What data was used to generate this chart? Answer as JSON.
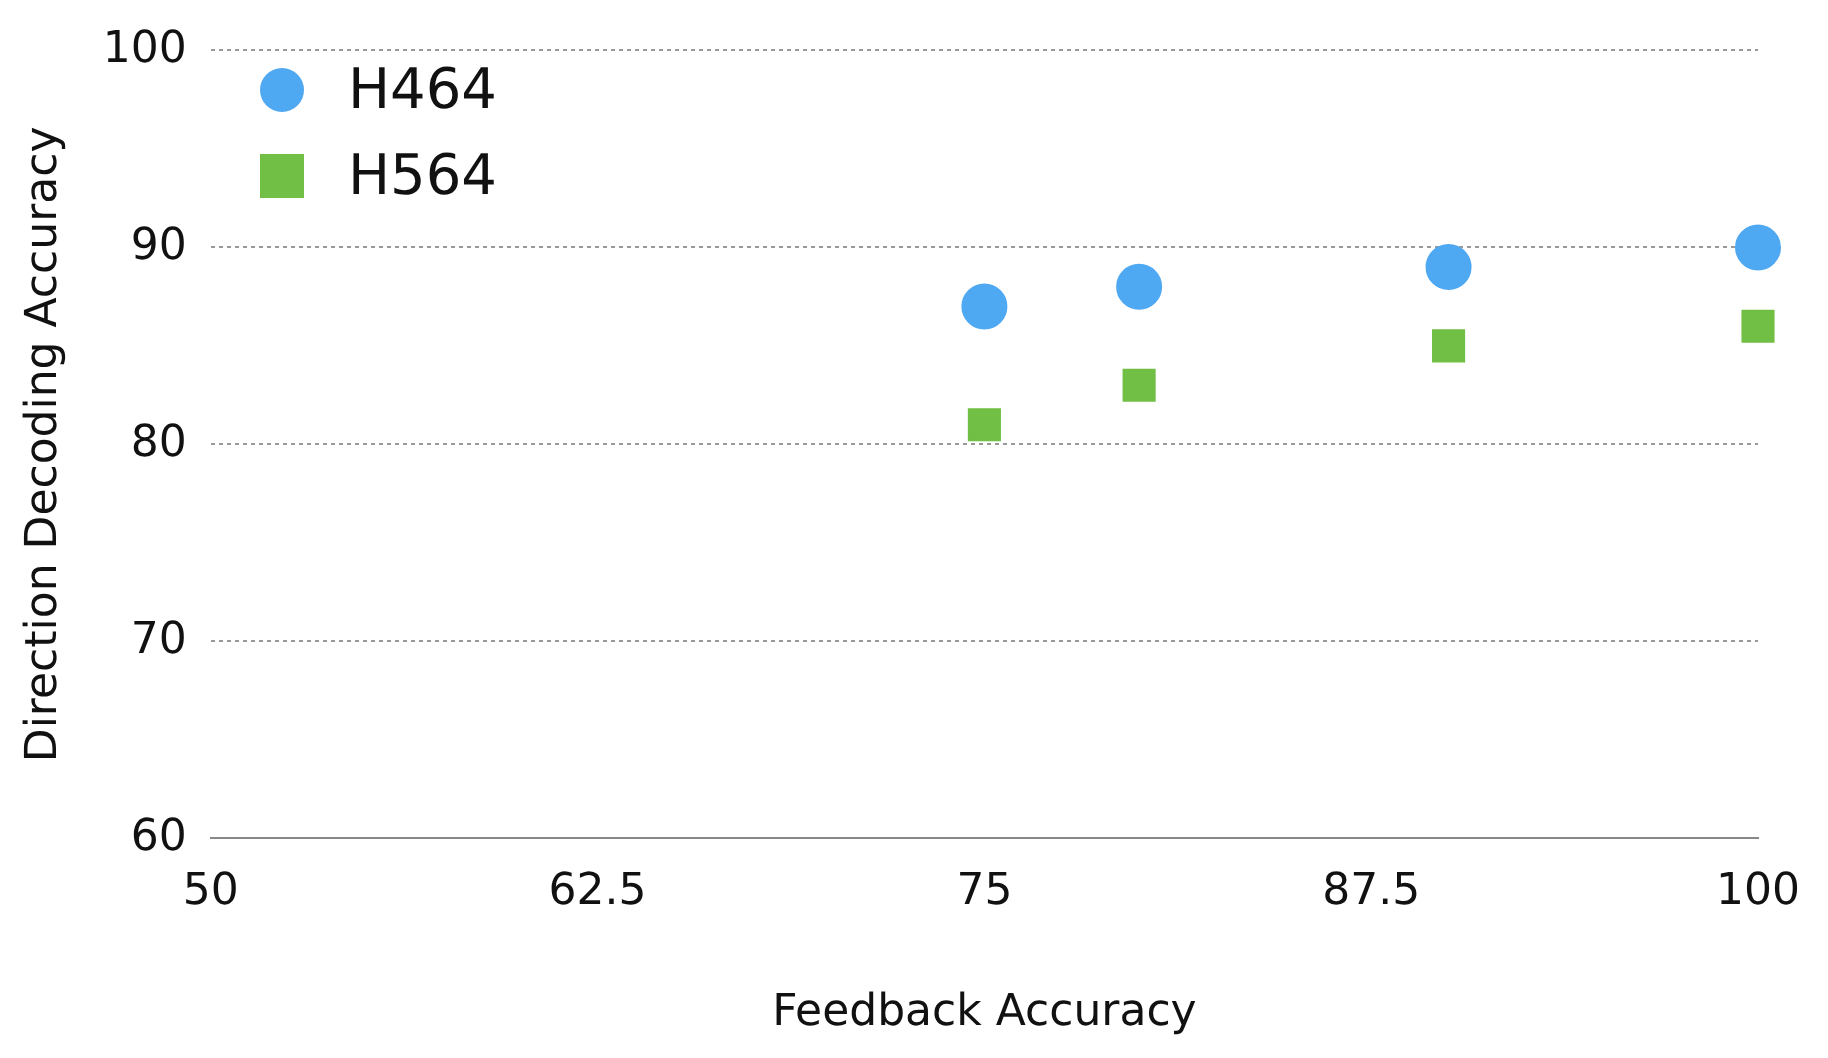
{
  "chart_data": {
    "type": "scatter",
    "xlabel": "Feedback Accuracy",
    "ylabel": "Direction Decoding Accuracy",
    "xlim": [
      50,
      100
    ],
    "xticks": [
      50,
      62.5,
      75,
      87.5,
      100
    ],
    "ylim": [
      60,
      100
    ],
    "yticks": [
      60,
      70,
      80,
      90,
      100
    ],
    "grid": "y",
    "legend": "top left",
    "series": [
      {
        "name": "H464",
        "color": "#4fa8f2",
        "marker": "circle",
        "x": [
          75,
          80,
          90,
          100
        ],
        "values": [
          87,
          88,
          89,
          90
        ]
      },
      {
        "name": "H564",
        "color": "#71bf44",
        "marker": "square",
        "x": [
          75,
          80,
          90,
          100
        ],
        "values": [
          81,
          83,
          85,
          86
        ]
      }
    ]
  }
}
